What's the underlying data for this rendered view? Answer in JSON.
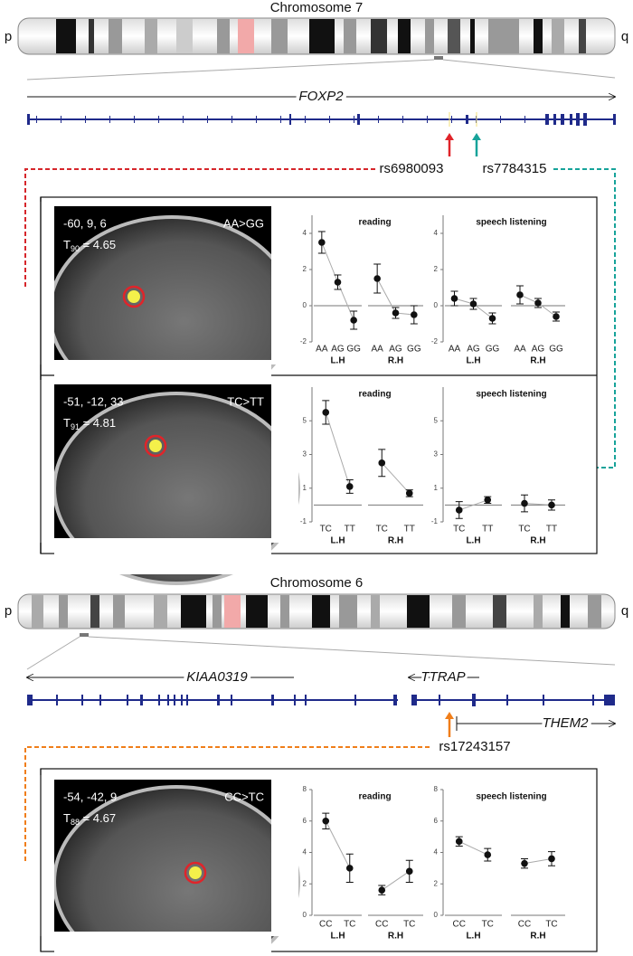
{
  "figure": {
    "chromosome_7": {
      "title": "Chromosome 7",
      "p": "p",
      "q": "q",
      "gene": "FOXP2",
      "snps": [
        "rs6980093",
        "rs7784315"
      ]
    },
    "chromosome_6": {
      "title": "Chromosome 6",
      "p": "p",
      "q": "q",
      "genes": [
        "KIAA0319",
        "TTRAP",
        "THEM2"
      ],
      "snps": [
        "rs17243157"
      ]
    },
    "panels": [
      {
        "coords": "-60, 9, 6",
        "stat": {
          "symbol": "T",
          "df": "90",
          "value": " = 4.65"
        },
        "contrast": "AA>GG"
      },
      {
        "coords": "-51, -12, 33",
        "stat": {
          "symbol": "T",
          "df": "91",
          "value": " = 4.81"
        },
        "contrast": "TC>TT"
      },
      {
        "coords": "-54, -42, 9",
        "stat": {
          "symbol": "T",
          "df": "88",
          "value": " = 4.67"
        },
        "contrast": "CC>TC"
      }
    ]
  },
  "chart_data": [
    {
      "type": "errorbar",
      "title": "reading",
      "ylim": [
        -2,
        5
      ],
      "yticks": [
        -2,
        0,
        2,
        4
      ],
      "series": [
        {
          "name": "L.H",
          "categories": [
            "AA",
            "AG",
            "GG"
          ],
          "values": [
            3.5,
            1.3,
            -0.8
          ],
          "errors": [
            0.6,
            0.4,
            0.5
          ]
        },
        {
          "name": "R.H",
          "categories": [
            "AA",
            "AG",
            "GG"
          ],
          "values": [
            1.5,
            -0.4,
            -0.5
          ],
          "errors": [
            0.8,
            0.3,
            0.5
          ]
        }
      ]
    },
    {
      "type": "errorbar",
      "title": "speech listening",
      "ylim": [
        -2,
        5
      ],
      "yticks": [
        -2,
        0,
        2,
        4
      ],
      "series": [
        {
          "name": "L.H",
          "categories": [
            "AA",
            "AG",
            "GG"
          ],
          "values": [
            0.4,
            0.1,
            -0.7
          ],
          "errors": [
            0.4,
            0.3,
            0.3
          ]
        },
        {
          "name": "R.H",
          "categories": [
            "AA",
            "AG",
            "GG"
          ],
          "values": [
            0.6,
            0.15,
            -0.6
          ],
          "errors": [
            0.5,
            0.25,
            0.25
          ]
        }
      ]
    },
    {
      "type": "errorbar",
      "title": "reading",
      "ylim": [
        -1,
        7
      ],
      "yticks": [
        -1,
        1,
        3,
        5
      ],
      "series": [
        {
          "name": "L.H",
          "categories": [
            "TC",
            "TT"
          ],
          "values": [
            5.5,
            1.1
          ],
          "errors": [
            0.7,
            0.4
          ]
        },
        {
          "name": "R.H",
          "categories": [
            "TC",
            "TT"
          ],
          "values": [
            2.5,
            0.7
          ],
          "errors": [
            0.8,
            0.2
          ]
        }
      ]
    },
    {
      "type": "errorbar",
      "title": "speech listening",
      "ylim": [
        -1,
        7
      ],
      "yticks": [
        -1,
        1,
        3,
        5
      ],
      "series": [
        {
          "name": "L.H",
          "categories": [
            "TC",
            "TT"
          ],
          "values": [
            -0.3,
            0.3
          ],
          "errors": [
            0.5,
            0.2
          ]
        },
        {
          "name": "R.H",
          "categories": [
            "TC",
            "TT"
          ],
          "values": [
            0.1,
            0.0
          ],
          "errors": [
            0.5,
            0.3
          ]
        }
      ]
    },
    {
      "type": "errorbar",
      "title": "reading",
      "ylim": [
        0,
        8
      ],
      "yticks": [
        0,
        2,
        4,
        6,
        8
      ],
      "series": [
        {
          "name": "L.H",
          "categories": [
            "CC",
            "TC"
          ],
          "values": [
            6.0,
            3.0
          ],
          "errors": [
            0.5,
            0.9
          ]
        },
        {
          "name": "R.H",
          "categories": [
            "CC",
            "TC"
          ],
          "values": [
            1.6,
            2.8
          ],
          "errors": [
            0.3,
            0.7
          ]
        }
      ]
    },
    {
      "type": "errorbar",
      "title": "speech listening",
      "ylim": [
        0,
        8
      ],
      "yticks": [
        0,
        2,
        4,
        6,
        8
      ],
      "series": [
        {
          "name": "L.H",
          "categories": [
            "CC",
            "TC"
          ],
          "values": [
            4.7,
            3.85
          ],
          "errors": [
            0.3,
            0.4
          ]
        },
        {
          "name": "R.H",
          "categories": [
            "CC",
            "TC"
          ],
          "values": [
            3.3,
            3.6
          ],
          "errors": [
            0.3,
            0.45
          ]
        }
      ]
    }
  ]
}
